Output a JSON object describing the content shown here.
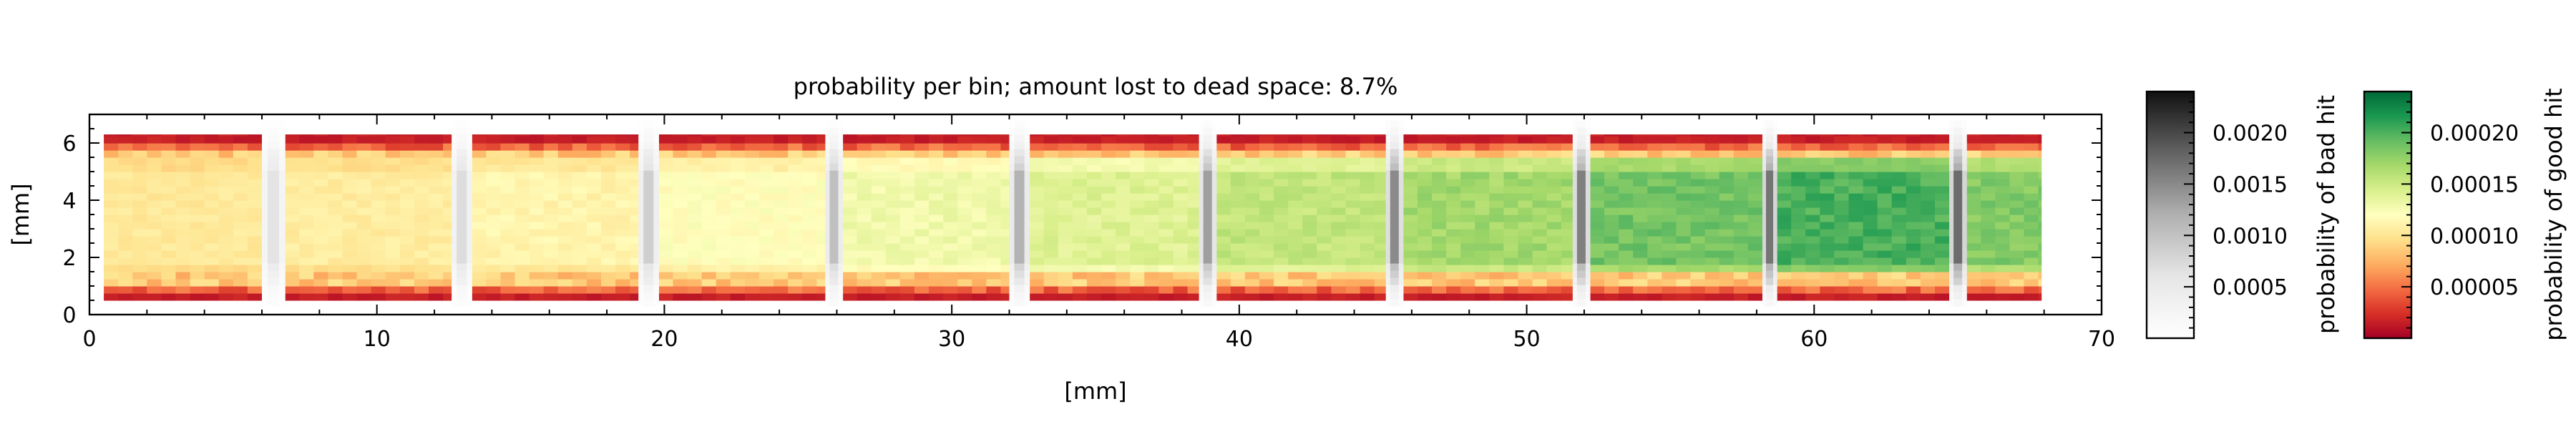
{
  "chart_data": {
    "type": "heatmap",
    "title": "probability per bin; amount lost to dead space: 8.7%",
    "xlabel": "[mm]",
    "ylabel": "[mm]",
    "xlim": [
      0,
      70
    ],
    "ylim": [
      0,
      7
    ],
    "x_ticks": [
      0,
      10,
      20,
      30,
      40,
      50,
      60,
      70
    ],
    "y_ticks": [
      0,
      2,
      4,
      6
    ],
    "grid": false,
    "bin_size_mm": 0.5,
    "good_hit": {
      "active_y_range": [
        0.5,
        6.3
      ],
      "strips_x": [
        [
          0.5,
          6.0
        ],
        [
          6.8,
          12.6
        ],
        [
          13.3,
          19.1
        ],
        [
          19.8,
          25.6
        ],
        [
          26.2,
          32.0
        ],
        [
          32.7,
          38.6
        ],
        [
          39.2,
          45.1
        ],
        [
          45.7,
          51.6
        ],
        [
          52.2,
          58.2
        ],
        [
          58.7,
          64.7
        ],
        [
          65.3,
          67.9
        ]
      ],
      "peak_profile_along_x": [
        0.000105,
        0.000108,
        0.000114,
        0.000122,
        0.000132,
        0.000143,
        0.000158,
        0.000172,
        0.00019,
        0.000205,
        0.000185
      ],
      "edge_profile_across_y": {
        "at_edge": 1e-05,
        "near_edge": 4e-05,
        "plateau_ratio": 1.0
      }
    },
    "bad_hit": {
      "gaps_x": [
        [
          6.0,
          6.8
        ],
        [
          12.6,
          13.3
        ],
        [
          19.1,
          19.8
        ],
        [
          25.6,
          26.2
        ],
        [
          32.0,
          32.7
        ],
        [
          38.6,
          39.2
        ],
        [
          45.1,
          45.7
        ],
        [
          51.6,
          52.2
        ],
        [
          58.2,
          58.7
        ],
        [
          64.7,
          65.3
        ]
      ],
      "active_y_range": [
        0.3,
        6.6
      ],
      "peak_values": [
        0.0008,
        0.0009,
        0.0011,
        0.0013,
        0.0015,
        0.0017,
        0.0019,
        0.002,
        0.0021,
        0.0022,
        0.002
      ]
    },
    "colorbars": [
      {
        "label": "probability of bad hit",
        "colormap": "Greys",
        "vmin": 0.0,
        "vmax": 0.0024,
        "ticks": [
          0.0005,
          0.001,
          0.0015,
          0.002
        ],
        "tick_labels": [
          "0.0005",
          "0.0010",
          "0.0015",
          "0.0020"
        ]
      },
      {
        "label": "probability of good hit",
        "colormap": "RdYlGn",
        "vmin": 0.0,
        "vmax": 0.00024,
        "ticks": [
          5e-05,
          0.0001,
          0.00015,
          0.0002
        ],
        "tick_labels": [
          "0.00005",
          "0.00010",
          "0.00015",
          "0.00020"
        ]
      }
    ]
  }
}
